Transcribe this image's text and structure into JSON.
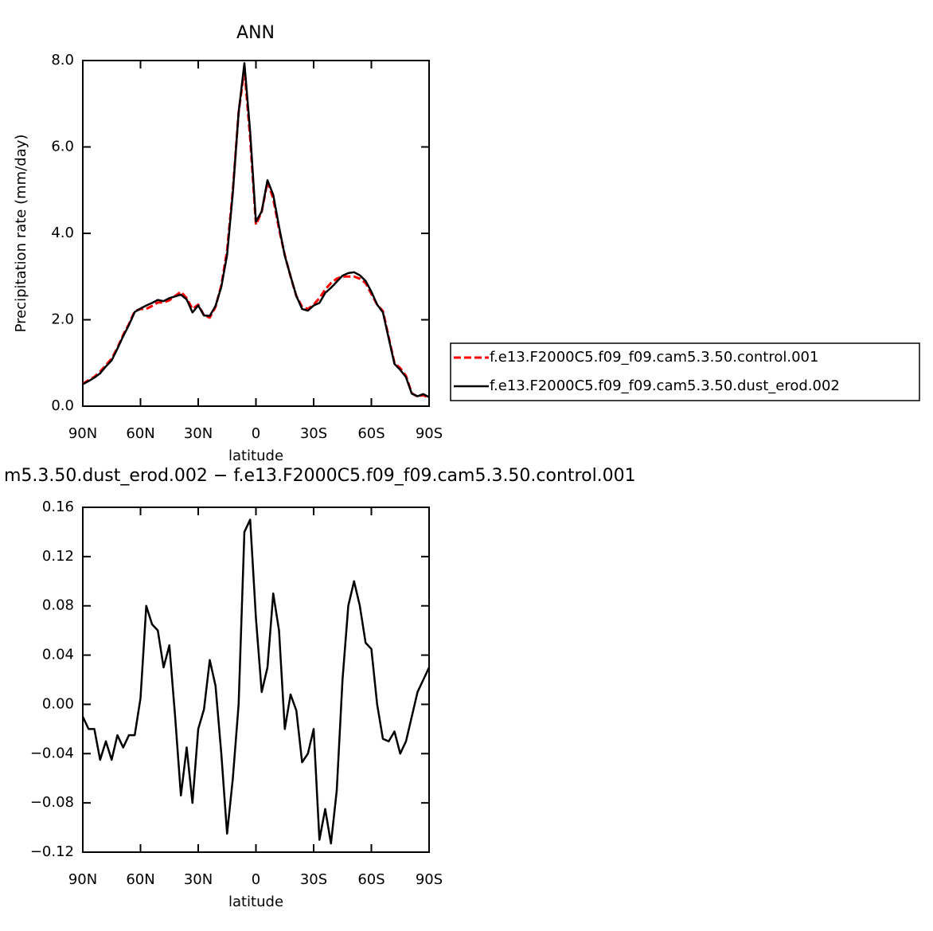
{
  "chart_data": [
    {
      "type": "line",
      "title": "ANN",
      "xlabel": "latitude",
      "ylabel": "Precipitation rate (mm/day)",
      "x": [
        90,
        87,
        84,
        81,
        78,
        75,
        72,
        69,
        66,
        63,
        60,
        57,
        54,
        51,
        48,
        45,
        42,
        39,
        36,
        33,
        30,
        27,
        24,
        21,
        18,
        15,
        12,
        9,
        6,
        3,
        0,
        -3,
        -6,
        -9,
        -12,
        -15,
        -18,
        -21,
        -24,
        -27,
        -30,
        -33,
        -36,
        -39,
        -42,
        -45,
        -48,
        -51,
        -54,
        -57,
        -60,
        -63,
        -66,
        -69,
        -72,
        -75,
        -78,
        -81,
        -84,
        -87,
        -90
      ],
      "series": [
        {
          "name": "f.e13.F2000C5.f09_f09.cam5.3.50.control.001",
          "color": "#ff0000",
          "dashed": true,
          "values": [
            0.52,
            0.6,
            0.68,
            0.8,
            0.95,
            1.1,
            1.35,
            1.65,
            1.9,
            2.2,
            2.25,
            2.25,
            2.32,
            2.4,
            2.4,
            2.45,
            2.55,
            2.65,
            2.5,
            2.25,
            2.35,
            2.1,
            2.05,
            2.3,
            2.8,
            3.6,
            5.0,
            6.8,
            7.8,
            6.2,
            4.2,
            4.5,
            5.2,
            4.8,
            4.1,
            3.5,
            3.0,
            2.55,
            2.3,
            2.25,
            2.35,
            2.5,
            2.7,
            2.85,
            2.95,
            3.0,
            3.0,
            3.0,
            2.95,
            2.85,
            2.6,
            2.35,
            2.2,
            1.6,
            1.0,
            0.88,
            0.7,
            0.3,
            0.22,
            0.26,
            0.18
          ]
        },
        {
          "name": "f.e13.F2000C5.f09_f09.cam5.3.50.dust_erod.002",
          "color": "#000000",
          "dashed": false,
          "values": [
            0.51,
            0.58,
            0.66,
            0.76,
            0.92,
            1.06,
            1.33,
            1.62,
            1.88,
            2.18,
            2.26,
            2.33,
            2.39,
            2.46,
            2.43,
            2.5,
            2.54,
            2.58,
            2.47,
            2.17,
            2.33,
            2.1,
            2.09,
            2.32,
            2.76,
            3.5,
            4.94,
            6.8,
            7.94,
            6.35,
            4.27,
            4.51,
            5.23,
            4.89,
            4.16,
            3.48,
            3.01,
            2.55,
            2.25,
            2.21,
            2.33,
            2.39,
            2.62,
            2.74,
            2.88,
            3.02,
            3.08,
            3.1,
            3.03,
            2.9,
            2.65,
            2.35,
            2.17,
            1.57,
            0.98,
            0.84,
            0.67,
            0.29,
            0.23,
            0.28,
            0.21
          ]
        }
      ],
      "xlim": [
        90,
        -90
      ],
      "xticks": [
        {
          "value": 90,
          "label": "90N"
        },
        {
          "value": 60,
          "label": "60N"
        },
        {
          "value": 30,
          "label": "30N"
        },
        0,
        {
          "value": -30,
          "label": "30S"
        },
        {
          "value": -60,
          "label": "60S"
        },
        {
          "value": -90,
          "label": "90S"
        }
      ],
      "ylim": [
        0,
        8
      ],
      "yticks": [
        {
          "value": 0,
          "label": "0.0"
        },
        {
          "value": 2,
          "label": "2.0"
        },
        {
          "value": 4,
          "label": "4.0"
        },
        {
          "value": 6,
          "label": "6.0"
        },
        {
          "value": 8,
          "label": "8.0"
        }
      ],
      "legend": "right"
    },
    {
      "type": "line",
      "title": "m5.3.50.dust_erod.002 − f.e13.F2000C5.f09_f09.cam5.3.50.control.001",
      "xlabel": "latitude",
      "x": [
        90,
        87,
        84,
        81,
        78,
        75,
        72,
        69,
        66,
        63,
        60,
        57,
        54,
        51,
        48,
        45,
        42,
        39,
        36,
        33,
        30,
        27,
        24,
        21,
        18,
        15,
        12,
        9,
        6,
        3,
        0,
        -3,
        -6,
        -9,
        -12,
        -15,
        -18,
        -21,
        -24,
        -27,
        -30,
        -33,
        -36,
        -39,
        -42,
        -45,
        -48,
        -51,
        -54,
        -57,
        -60,
        -63,
        -66,
        -69,
        -72,
        -75,
        -78,
        -81,
        -84,
        -87,
        -90
      ],
      "series": [
        {
          "color": "#000000",
          "dashed": false,
          "values": [
            -0.01,
            -0.02,
            -0.02,
            -0.045,
            -0.03,
            -0.045,
            -0.025,
            -0.035,
            -0.025,
            -0.025,
            0.005,
            0.08,
            0.065,
            0.06,
            0.03,
            0.048,
            -0.01,
            -0.074,
            -0.035,
            -0.08,
            -0.02,
            -0.004,
            0.036,
            0.015,
            -0.04,
            -0.105,
            -0.06,
            0.0,
            0.14,
            0.15,
            0.07,
            0.01,
            0.03,
            0.09,
            0.06,
            -0.02,
            0.008,
            -0.005,
            -0.047,
            -0.04,
            -0.02,
            -0.11,
            -0.085,
            -0.113,
            -0.07,
            0.02,
            0.08,
            0.1,
            0.08,
            0.05,
            0.045,
            0.0,
            -0.028,
            -0.03,
            -0.022,
            -0.04,
            -0.03,
            -0.01,
            0.01,
            0.02,
            0.03
          ]
        }
      ],
      "xlim": [
        90,
        -90
      ],
      "xticks": [
        {
          "value": 90,
          "label": "90N"
        },
        {
          "value": 60,
          "label": "60N"
        },
        {
          "value": 30,
          "label": "30N"
        },
        0,
        {
          "value": -30,
          "label": "30S"
        },
        {
          "value": -60,
          "label": "60S"
        },
        {
          "value": -90,
          "label": "90S"
        }
      ],
      "ylim": [
        -0.12,
        0.16
      ],
      "yticks": [
        {
          "value": -0.12,
          "label": "−0.12"
        },
        {
          "value": -0.08,
          "label": "−0.08"
        },
        {
          "value": -0.04,
          "label": "−0.04"
        },
        {
          "value": 0,
          "label": "0.00"
        },
        0.04,
        0.08,
        0.12,
        0.16
      ]
    }
  ]
}
